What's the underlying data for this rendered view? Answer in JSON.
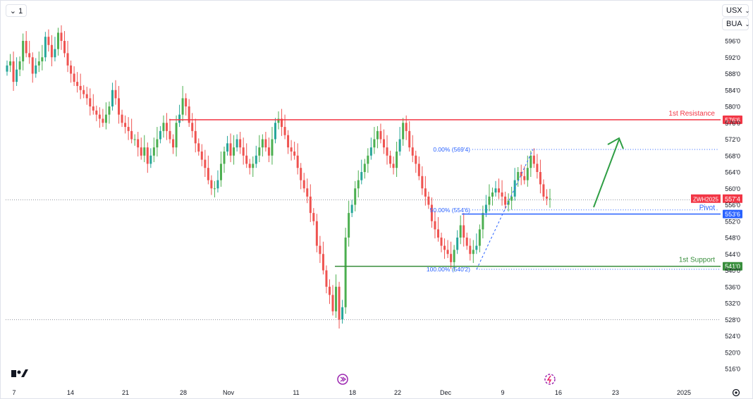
{
  "toolbar": {
    "interval_label": "⌄ 1",
    "currency": "USX",
    "unit": "BUA"
  },
  "colors": {
    "up": "#26a69a",
    "up_alt": "#4caf50",
    "down": "#ef5350",
    "resistance": "#f23645",
    "support": "#388e3c",
    "pivot": "#2962ff",
    "fib": "#2962ff",
    "arrow": "#2e9e44",
    "grid_text": "#131722",
    "price_tag": "#f23645"
  },
  "chart_data": {
    "type": "candlestick",
    "symbol": "ZWH2025",
    "last_price": "557'4",
    "y_range": [
      514,
      598
    ],
    "y_ticks": [
      "596'0",
      "592'0",
      "588'0",
      "584'0",
      "580'0",
      "576'0",
      "572'0",
      "568'0",
      "564'0",
      "560'0",
      "556'0",
      "552'0",
      "548'0",
      "544'0",
      "540'0",
      "536'0",
      "532'0",
      "528'0",
      "524'0",
      "520'0",
      "516'0"
    ],
    "x_ticks": [
      "7",
      "14",
      "21",
      "28",
      "Nov",
      "11",
      "18",
      "22",
      "Dec",
      "9",
      "16",
      "23",
      "2025"
    ],
    "levels": [
      {
        "name": "1st Resistance",
        "price": 576.75,
        "tag": "576'6"
      },
      {
        "name": "Pivot",
        "price": 553.75,
        "tag": "553'6"
      },
      {
        "name": "1st Support",
        "price": 541.0,
        "tag": "541'0"
      }
    ],
    "fibonacci": [
      {
        "label": "0.00% (569'4)",
        "price": 569.5
      },
      {
        "label": "50.00% (554'6)",
        "price": 554.75
      },
      {
        "label": "100.00% (540'2)",
        "price": 540.25
      }
    ],
    "closes": [
      590,
      591,
      586,
      589,
      591,
      596,
      593,
      592,
      588,
      590,
      591,
      592,
      597,
      595,
      592,
      594,
      598,
      596,
      593,
      590,
      588,
      586,
      585,
      584,
      583,
      582,
      580,
      579,
      578,
      577,
      576,
      578,
      580,
      584,
      582,
      578,
      576,
      575,
      574,
      572,
      572,
      570,
      568,
      570,
      566,
      568,
      570,
      572,
      574,
      576,
      574,
      572,
      570,
      576,
      578,
      582,
      580,
      576,
      574,
      571,
      569,
      567,
      565,
      562,
      560,
      560,
      562,
      566,
      569,
      571,
      568,
      570,
      572,
      570,
      568,
      566,
      565,
      566,
      568,
      570,
      572,
      570,
      568,
      572,
      576,
      577,
      575,
      573,
      570,
      569,
      568,
      565,
      562,
      560,
      558,
      554,
      552,
      546,
      544,
      540,
      536,
      534,
      530,
      536,
      528,
      531,
      548,
      554,
      556,
      560,
      562,
      564,
      566,
      568,
      570,
      572,
      574,
      572,
      570,
      568,
      566,
      565,
      569,
      572,
      576,
      574,
      570,
      568,
      566,
      563,
      560,
      558,
      556,
      552,
      550,
      548,
      546,
      545,
      544,
      542,
      545,
      548,
      551,
      548,
      546,
      544,
      545,
      546,
      550,
      554,
      556,
      558,
      559,
      560,
      559,
      558,
      556,
      557,
      558,
      562,
      564,
      563,
      562,
      565,
      568,
      566,
      564,
      561,
      558,
      557.5,
      557.5
    ]
  }
}
